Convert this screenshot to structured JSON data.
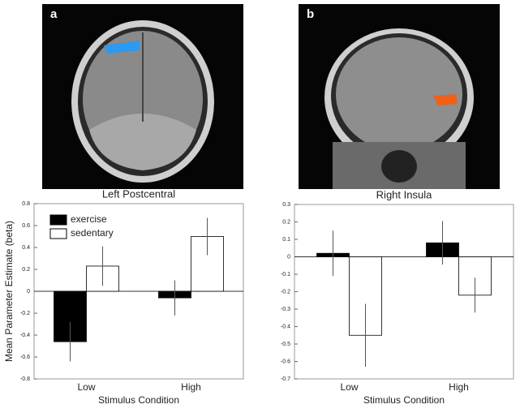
{
  "panel_labels": [
    "a",
    "b"
  ],
  "chart_data": [
    {
      "type": "bar",
      "title": "Left Postcentral",
      "xlabel": "Stimulus Condition",
      "ylabel": "Mean Parameter Estimate (beta)",
      "categories": [
        "Low",
        "High"
      ],
      "series": [
        {
          "name": "exercise",
          "color": "#000000",
          "values": [
            -0.46,
            -0.06
          ],
          "errors": [
            0.18,
            0.16
          ]
        },
        {
          "name": "sedentary",
          "color": "#ffffff",
          "values": [
            0.23,
            0.5
          ],
          "errors": [
            0.18,
            0.17
          ]
        }
      ],
      "ylim": [
        -0.8,
        0.8
      ],
      "yticks": [
        -0.8,
        -0.6,
        -0.4,
        -0.2,
        0,
        0.2,
        0.4,
        0.6,
        0.8
      ],
      "legend": "upper left"
    },
    {
      "type": "bar",
      "title": "Right Insula",
      "xlabel": "Stimulus Condition",
      "categories": [
        "Low",
        "High"
      ],
      "series": [
        {
          "name": "exercise",
          "color": "#000000",
          "values": [
            0.02,
            0.08
          ],
          "errors": [
            0.13,
            0.125
          ]
        },
        {
          "name": "sedentary",
          "color": "#ffffff",
          "values": [
            -0.45,
            -0.22
          ],
          "errors": [
            0.18,
            0.1
          ]
        }
      ],
      "ylim": [
        -0.7,
        0.3
      ],
      "yticks": [
        -0.7,
        -0.6,
        -0.5,
        -0.4,
        -0.3,
        -0.2,
        -0.1,
        0,
        0.1,
        0.2,
        0.3
      ],
      "legend": "none"
    }
  ]
}
